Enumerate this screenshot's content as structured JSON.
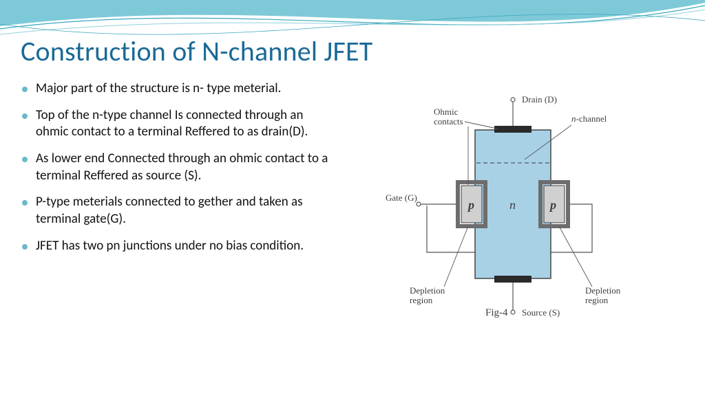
{
  "theme": {
    "title_color": "#1a6a96",
    "bullet_color": "#6bb9c9",
    "wave_fill": "#7ec9d8",
    "wave_line1": "#3aa6bf",
    "wave_line2": "#8fd1dc",
    "text_color": "#111111",
    "figure_text_color": "#3f3f3f",
    "diagram_body_fill": "#a8d1e6",
    "diagram_body_stroke": "#3a3a3a",
    "p_region_fill": "#d0d0d0",
    "contact_fill": "#2a2a2a",
    "lead_color": "#555555"
  },
  "title": "Construction of N-channel JFET",
  "bullets": [
    "Major part of the structure is n- type meterial.",
    "Top of the n-type channel Is connected through an ohmic contact  to a terminal Reffered to as drain(D).",
    "As lower end Connected through an ohmic contact to a terminal Reffered as source (S).",
    "P-type meterials connected to gether and taken as terminal gate(G).",
    "JFET has two pn junctions under no bias condition."
  ],
  "figure": {
    "labels": {
      "drain": "Drain (D)",
      "source": "Source (S)",
      "gate": "Gate (G)",
      "ohmic": "Ohmic contacts",
      "nchannel": "n-channel",
      "dep_left": "Depletion region",
      "dep_right": "Depletion region",
      "p_left": "p",
      "p_right": "p",
      "n_center": "n",
      "caption": "Fig-4"
    },
    "font_size_label": 13,
    "font_size_symbol": 18,
    "font_size_caption": 15
  }
}
